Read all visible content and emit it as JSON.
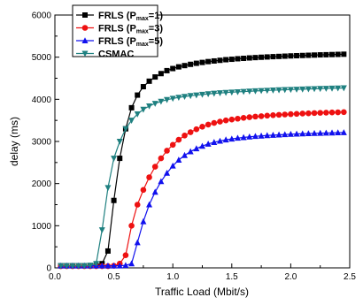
{
  "chart_data": {
    "type": "line",
    "xlabel": "Traffic Load (Mbit/s)",
    "ylabel": "delay (ms)",
    "xlim": [
      0.0,
      2.5
    ],
    "ylim": [
      0,
      6000
    ],
    "x_ticks": [
      0.0,
      0.5,
      1.0,
      1.5,
      2.0,
      2.5
    ],
    "x_tick_labels": [
      "0.0",
      "0.5",
      "1.0",
      "1.5",
      "2.0",
      "2.5"
    ],
    "y_ticks": [
      0,
      1000,
      2000,
      3000,
      4000,
      5000,
      6000
    ],
    "y_tick_labels": [
      "0",
      "1000",
      "2000",
      "3000",
      "4000",
      "5000",
      "6000"
    ],
    "grid": false,
    "legend_position": "top-left",
    "series": [
      {
        "name": "FRLS (P",
        "name_sub": "max",
        "name_suffix": "=1)",
        "color": "#000000",
        "marker": "square",
        "x": [
          0.05,
          0.1,
          0.15,
          0.2,
          0.25,
          0.3,
          0.35,
          0.4,
          0.45,
          0.5,
          0.55,
          0.6,
          0.65,
          0.7,
          0.75,
          0.8,
          0.85,
          0.9,
          0.95,
          1.0,
          1.05,
          1.1,
          1.15,
          1.2,
          1.25,
          1.3,
          1.35,
          1.4,
          1.45,
          1.5,
          1.55,
          1.6,
          1.65,
          1.7,
          1.75,
          1.8,
          1.85,
          1.9,
          1.95,
          2.0,
          2.05,
          2.1,
          2.15,
          2.2,
          2.25,
          2.3,
          2.35,
          2.4,
          2.45
        ],
        "values": [
          50,
          50,
          50,
          50,
          50,
          50,
          55,
          100,
          400,
          1600,
          2600,
          3300,
          3800,
          4100,
          4300,
          4430,
          4530,
          4610,
          4680,
          4730,
          4770,
          4800,
          4830,
          4855,
          4875,
          4895,
          4910,
          4925,
          4940,
          4950,
          4962,
          4972,
          4982,
          4990,
          4998,
          5005,
          5012,
          5018,
          5024,
          5030,
          5035,
          5040,
          5045,
          5050,
          5055,
          5058,
          5062,
          5066,
          5070
        ]
      },
      {
        "name": "FRLS (P",
        "name_sub": "max",
        "name_suffix": "=3)",
        "color": "#ee1111",
        "marker": "circle",
        "x": [
          0.05,
          0.1,
          0.15,
          0.2,
          0.25,
          0.3,
          0.35,
          0.4,
          0.45,
          0.5,
          0.55,
          0.6,
          0.65,
          0.7,
          0.75,
          0.8,
          0.85,
          0.9,
          0.95,
          1.0,
          1.05,
          1.1,
          1.15,
          1.2,
          1.25,
          1.3,
          1.35,
          1.4,
          1.45,
          1.5,
          1.55,
          1.6,
          1.65,
          1.7,
          1.75,
          1.8,
          1.85,
          1.9,
          1.95,
          2.0,
          2.05,
          2.1,
          2.15,
          2.2,
          2.25,
          2.3,
          2.35,
          2.4,
          2.45
        ],
        "values": [
          40,
          40,
          40,
          40,
          40,
          40,
          40,
          40,
          40,
          50,
          100,
          300,
          1000,
          1500,
          1850,
          2150,
          2400,
          2600,
          2780,
          2920,
          3040,
          3140,
          3220,
          3290,
          3350,
          3400,
          3440,
          3470,
          3500,
          3520,
          3540,
          3560,
          3575,
          3590,
          3600,
          3612,
          3622,
          3632,
          3640,
          3648,
          3655,
          3662,
          3668,
          3674,
          3679,
          3684,
          3688,
          3692,
          3696
        ]
      },
      {
        "name": "FRLS (P",
        "name_sub": "max",
        "name_suffix": "=5)",
        "color": "#1111ee",
        "marker": "triangle",
        "x": [
          0.05,
          0.1,
          0.15,
          0.2,
          0.25,
          0.3,
          0.35,
          0.4,
          0.45,
          0.5,
          0.55,
          0.6,
          0.65,
          0.7,
          0.75,
          0.8,
          0.85,
          0.9,
          0.95,
          1.0,
          1.05,
          1.1,
          1.15,
          1.2,
          1.25,
          1.3,
          1.35,
          1.4,
          1.45,
          1.5,
          1.55,
          1.6,
          1.65,
          1.7,
          1.75,
          1.8,
          1.85,
          1.9,
          1.95,
          2.0,
          2.05,
          2.1,
          2.15,
          2.2,
          2.25,
          2.3,
          2.35,
          2.4,
          2.45
        ],
        "values": [
          50,
          50,
          50,
          50,
          50,
          50,
          50,
          50,
          50,
          50,
          50,
          60,
          100,
          600,
          1100,
          1500,
          1800,
          2050,
          2250,
          2420,
          2560,
          2670,
          2760,
          2830,
          2890,
          2940,
          2980,
          3010,
          3040,
          3060,
          3080,
          3095,
          3110,
          3122,
          3132,
          3142,
          3150,
          3158,
          3165,
          3172,
          3178,
          3183,
          3188,
          3193,
          3197,
          3201,
          3205,
          3209,
          3212
        ]
      },
      {
        "name": "CSMAC",
        "name_sub": "",
        "name_suffix": "",
        "color": "#1f8080",
        "marker": "triangle-down",
        "x": [
          0.05,
          0.1,
          0.15,
          0.2,
          0.25,
          0.3,
          0.35,
          0.4,
          0.45,
          0.5,
          0.55,
          0.6,
          0.65,
          0.7,
          0.75,
          0.8,
          0.85,
          0.9,
          0.95,
          1.0,
          1.05,
          1.1,
          1.15,
          1.2,
          1.25,
          1.3,
          1.35,
          1.4,
          1.45,
          1.5,
          1.55,
          1.6,
          1.65,
          1.7,
          1.75,
          1.8,
          1.85,
          1.9,
          1.95,
          2.0,
          2.05,
          2.1,
          2.15,
          2.2,
          2.25,
          2.3,
          2.35,
          2.4,
          2.45
        ],
        "values": [
          50,
          50,
          50,
          50,
          50,
          60,
          100,
          900,
          1900,
          2600,
          3000,
          3300,
          3500,
          3650,
          3760,
          3840,
          3900,
          3950,
          3990,
          4020,
          4045,
          4065,
          4085,
          4100,
          4115,
          4128,
          4140,
          4150,
          4160,
          4168,
          4176,
          4184,
          4191,
          4198,
          4204,
          4210,
          4216,
          4221,
          4226,
          4231,
          4236,
          4240,
          4245,
          4249,
          4253,
          4257,
          4261,
          4264,
          4268
        ]
      }
    ]
  }
}
